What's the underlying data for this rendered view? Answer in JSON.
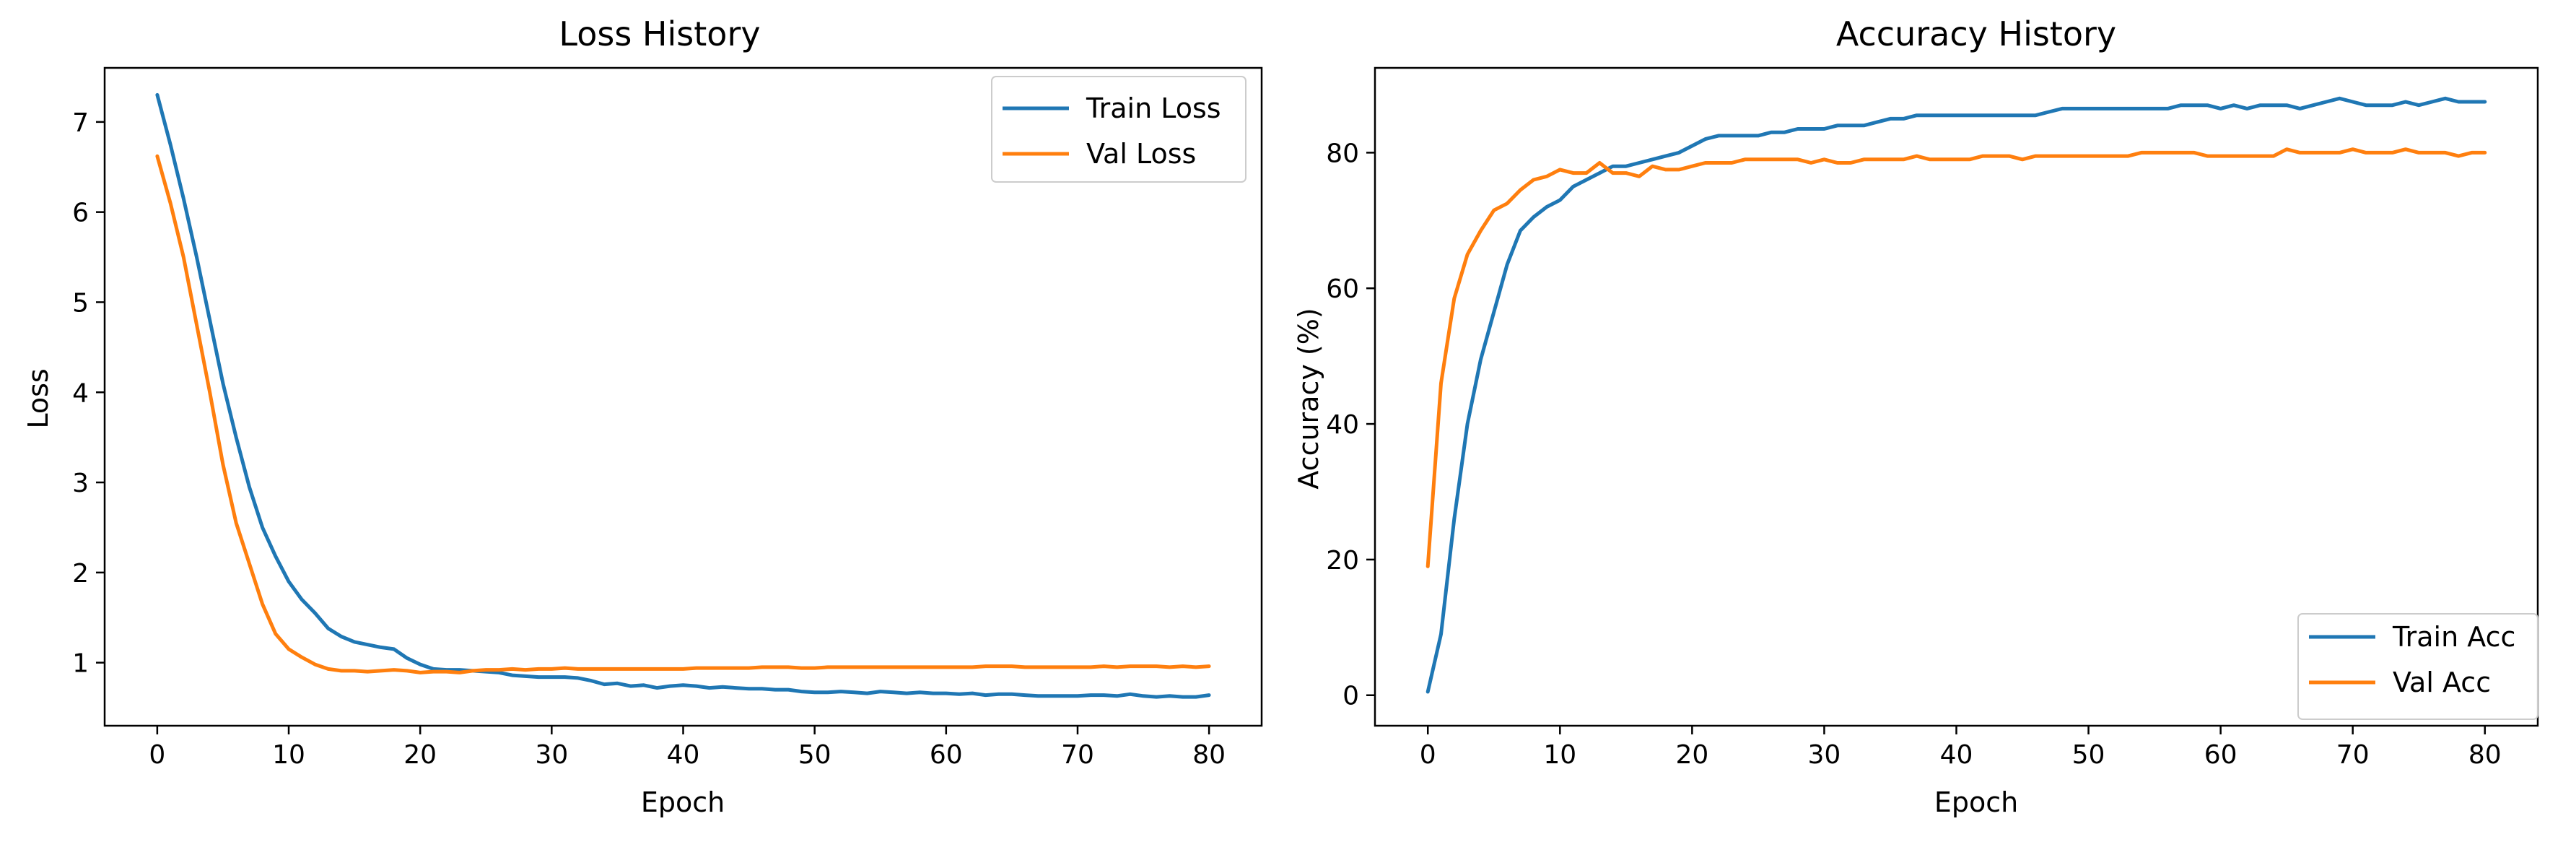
{
  "chart_data": [
    {
      "type": "line",
      "title": "Loss History",
      "xlabel": "Epoch",
      "ylabel": "Loss",
      "xlim": [
        -4,
        84
      ],
      "ylim": [
        0.3,
        7.6
      ],
      "xticks": [
        0,
        10,
        20,
        30,
        40,
        50,
        60,
        70,
        80
      ],
      "yticks": [
        1,
        2,
        3,
        4,
        5,
        6,
        7
      ],
      "grid": false,
      "legend_position": "top-right",
      "x": [
        0,
        1,
        2,
        3,
        4,
        5,
        6,
        7,
        8,
        9,
        10,
        11,
        12,
        13,
        14,
        15,
        16,
        17,
        18,
        19,
        20,
        21,
        22,
        23,
        24,
        25,
        26,
        27,
        28,
        29,
        30,
        31,
        32,
        33,
        34,
        35,
        36,
        37,
        38,
        39,
        40,
        41,
        42,
        43,
        44,
        45,
        46,
        47,
        48,
        49,
        50,
        51,
        52,
        53,
        54,
        55,
        56,
        57,
        58,
        59,
        60,
        61,
        62,
        63,
        64,
        65,
        66,
        67,
        68,
        69,
        70,
        71,
        72,
        73,
        74,
        75,
        76,
        77,
        78,
        79,
        80
      ],
      "series": [
        {
          "name": "Train Loss",
          "color": "#1f77b4",
          "values": [
            7.3,
            6.75,
            6.15,
            5.5,
            4.8,
            4.1,
            3.5,
            2.95,
            2.5,
            2.18,
            1.9,
            1.7,
            1.55,
            1.38,
            1.29,
            1.23,
            1.2,
            1.17,
            1.15,
            1.05,
            0.98,
            0.93,
            0.92,
            0.92,
            0.91,
            0.9,
            0.89,
            0.86,
            0.85,
            0.84,
            0.84,
            0.84,
            0.83,
            0.8,
            0.76,
            0.77,
            0.74,
            0.75,
            0.72,
            0.74,
            0.75,
            0.74,
            0.72,
            0.73,
            0.72,
            0.71,
            0.71,
            0.7,
            0.7,
            0.68,
            0.67,
            0.67,
            0.68,
            0.67,
            0.66,
            0.68,
            0.67,
            0.66,
            0.67,
            0.66,
            0.66,
            0.65,
            0.66,
            0.64,
            0.65,
            0.65,
            0.64,
            0.63,
            0.63,
            0.63,
            0.63,
            0.64,
            0.64,
            0.63,
            0.65,
            0.63,
            0.62,
            0.63,
            0.62,
            0.62,
            0.64
          ]
        },
        {
          "name": "Val Loss",
          "color": "#ff7f0e",
          "values": [
            6.62,
            6.1,
            5.5,
            4.75,
            4.0,
            3.2,
            2.55,
            2.1,
            1.65,
            1.32,
            1.15,
            1.06,
            0.98,
            0.93,
            0.91,
            0.91,
            0.9,
            0.91,
            0.92,
            0.91,
            0.89,
            0.9,
            0.9,
            0.89,
            0.91,
            0.92,
            0.92,
            0.93,
            0.92,
            0.93,
            0.93,
            0.94,
            0.93,
            0.93,
            0.93,
            0.93,
            0.93,
            0.93,
            0.93,
            0.93,
            0.93,
            0.94,
            0.94,
            0.94,
            0.94,
            0.94,
            0.95,
            0.95,
            0.95,
            0.94,
            0.94,
            0.95,
            0.95,
            0.95,
            0.95,
            0.95,
            0.95,
            0.95,
            0.95,
            0.95,
            0.95,
            0.95,
            0.95,
            0.96,
            0.96,
            0.96,
            0.95,
            0.95,
            0.95,
            0.95,
            0.95,
            0.95,
            0.96,
            0.95,
            0.96,
            0.96,
            0.96,
            0.95,
            0.96,
            0.95,
            0.96
          ]
        }
      ]
    },
    {
      "type": "line",
      "title": "Accuracy History",
      "xlabel": "Epoch",
      "ylabel": "Accuracy (%)",
      "xlim": [
        -4,
        84
      ],
      "ylim": [
        -4.5,
        92.5
      ],
      "xticks": [
        0,
        10,
        20,
        30,
        40,
        50,
        60,
        70,
        80
      ],
      "yticks": [
        0,
        20,
        40,
        60,
        80
      ],
      "grid": false,
      "legend_position": "bottom-right",
      "x": [
        0,
        1,
        2,
        3,
        4,
        5,
        6,
        7,
        8,
        9,
        10,
        11,
        12,
        13,
        14,
        15,
        16,
        17,
        18,
        19,
        20,
        21,
        22,
        23,
        24,
        25,
        26,
        27,
        28,
        29,
        30,
        31,
        32,
        33,
        34,
        35,
        36,
        37,
        38,
        39,
        40,
        41,
        42,
        43,
        44,
        45,
        46,
        47,
        48,
        49,
        50,
        51,
        52,
        53,
        54,
        55,
        56,
        57,
        58,
        59,
        60,
        61,
        62,
        63,
        64,
        65,
        66,
        67,
        68,
        69,
        70,
        71,
        72,
        73,
        74,
        75,
        76,
        77,
        78,
        79,
        80
      ],
      "series": [
        {
          "name": "Train Acc",
          "color": "#1f77b4",
          "values": [
            0.5,
            9,
            26,
            40,
            49.5,
            56.5,
            63.5,
            68.5,
            70.5,
            72,
            73,
            75,
            76,
            77,
            78,
            78,
            78.5,
            79,
            79.5,
            80,
            81,
            82,
            82.5,
            82.5,
            82.5,
            82.5,
            83,
            83,
            83.5,
            83.5,
            83.5,
            84,
            84,
            84,
            84.5,
            85,
            85,
            85.5,
            85.5,
            85.5,
            85.5,
            85.5,
            85.5,
            85.5,
            85.5,
            85.5,
            85.5,
            86,
            86.5,
            86.5,
            86.5,
            86.5,
            86.5,
            86.5,
            86.5,
            86.5,
            86.5,
            87,
            87,
            87,
            86.5,
            87,
            86.5,
            87,
            87,
            87,
            86.5,
            87,
            87.5,
            88,
            87.5,
            87,
            87,
            87,
            87.5,
            87,
            87.5,
            88,
            87.5,
            87.5,
            87.5
          ]
        },
        {
          "name": "Val Acc",
          "color": "#ff7f0e",
          "values": [
            19,
            46,
            58.5,
            65,
            68.5,
            71.5,
            72.5,
            74.5,
            76,
            76.5,
            77.5,
            77,
            77,
            78.5,
            77,
            77,
            76.5,
            78,
            77.5,
            77.5,
            78,
            78.5,
            78.5,
            78.5,
            79,
            79,
            79,
            79,
            79,
            78.5,
            79,
            78.5,
            78.5,
            79,
            79,
            79,
            79,
            79.5,
            79,
            79,
            79,
            79,
            79.5,
            79.5,
            79.5,
            79,
            79.5,
            79.5,
            79.5,
            79.5,
            79.5,
            79.5,
            79.5,
            79.5,
            80,
            80,
            80,
            80,
            80,
            79.5,
            79.5,
            79.5,
            79.5,
            79.5,
            79.5,
            80.5,
            80,
            80,
            80,
            80,
            80.5,
            80,
            80,
            80,
            80.5,
            80,
            80,
            80,
            79.5,
            80,
            80
          ]
        }
      ]
    }
  ]
}
